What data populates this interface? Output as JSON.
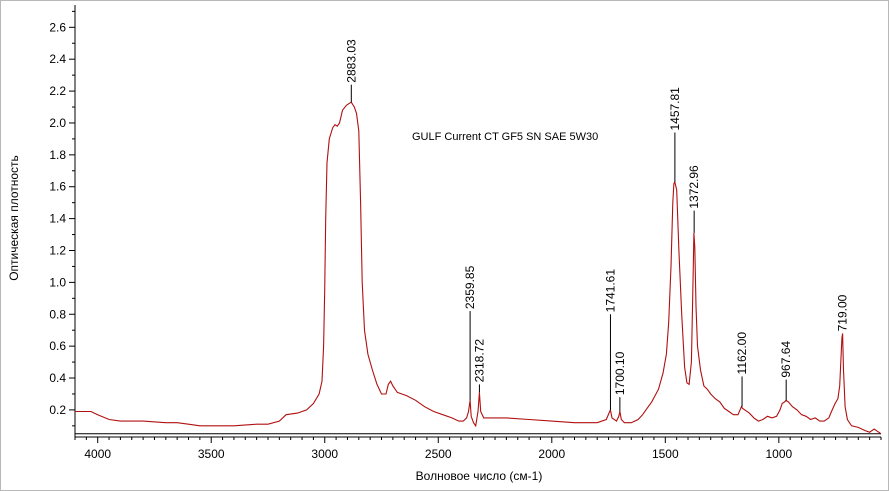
{
  "chart_data": {
    "type": "line",
    "title": "GULF Current CT GF5 SN SAE 5W30",
    "xlabel": "Волновое число (см-1)",
    "ylabel": "Оптическая плотность",
    "xlim": [
      4100,
      550
    ],
    "ylim": [
      0.03,
      2.74
    ],
    "x_reversed": true,
    "grid": false,
    "legend": "none",
    "line_color": "#b01010",
    "x_ticks": [
      4000,
      3500,
      3000,
      2500,
      2000,
      1500,
      1000
    ],
    "x_tick_labels": [
      "4000",
      "3500",
      "3000",
      "2500",
      "2000",
      "1500",
      "1000"
    ],
    "y_ticks": [
      0.2,
      0.4,
      0.6,
      0.8,
      1.0,
      1.2,
      1.4,
      1.6,
      1.8,
      2.0,
      2.2,
      2.4,
      2.6
    ],
    "y_tick_labels": [
      "0.2",
      "0.4",
      "0.6",
      "0.8",
      "1.0",
      "1.2",
      "1.4",
      "1.6",
      "1.8",
      "2.0",
      "2.2",
      "2.4",
      "2.6"
    ],
    "baseline_y": 0.05,
    "series": [
      {
        "points": [
          [
            4100,
            0.19
          ],
          [
            4030,
            0.19
          ],
          [
            4000,
            0.17
          ],
          [
            3950,
            0.14
          ],
          [
            3900,
            0.13
          ],
          [
            3800,
            0.13
          ],
          [
            3700,
            0.12
          ],
          [
            3650,
            0.12
          ],
          [
            3600,
            0.11
          ],
          [
            3550,
            0.1
          ],
          [
            3500,
            0.1
          ],
          [
            3400,
            0.1
          ],
          [
            3300,
            0.11
          ],
          [
            3250,
            0.11
          ],
          [
            3200,
            0.13
          ],
          [
            3170,
            0.17
          ],
          [
            3120,
            0.18
          ],
          [
            3080,
            0.2
          ],
          [
            3050,
            0.24
          ],
          [
            3025,
            0.3
          ],
          [
            3012,
            0.38
          ],
          [
            3005,
            0.6
          ],
          [
            3000,
            0.95
          ],
          [
            2996,
            1.4
          ],
          [
            2990,
            1.75
          ],
          [
            2980,
            1.9
          ],
          [
            2965,
            1.97
          ],
          [
            2955,
            1.99
          ],
          [
            2945,
            1.98
          ],
          [
            2935,
            2.0
          ],
          [
            2922,
            2.08
          ],
          [
            2905,
            2.11
          ],
          [
            2895,
            2.12
          ],
          [
            2883,
            2.13
          ],
          [
            2870,
            2.1
          ],
          [
            2860,
            2.06
          ],
          [
            2850,
            1.95
          ],
          [
            2842,
            1.5
          ],
          [
            2835,
            1.0
          ],
          [
            2825,
            0.7
          ],
          [
            2810,
            0.55
          ],
          [
            2790,
            0.45
          ],
          [
            2770,
            0.36
          ],
          [
            2750,
            0.3
          ],
          [
            2730,
            0.3
          ],
          [
            2720,
            0.36
          ],
          [
            2710,
            0.38
          ],
          [
            2700,
            0.35
          ],
          [
            2680,
            0.31
          ],
          [
            2660,
            0.3
          ],
          [
            2640,
            0.29
          ],
          [
            2600,
            0.26
          ],
          [
            2560,
            0.22
          ],
          [
            2520,
            0.19
          ],
          [
            2480,
            0.17
          ],
          [
            2440,
            0.15
          ],
          [
            2410,
            0.13
          ],
          [
            2390,
            0.13
          ],
          [
            2375,
            0.15
          ],
          [
            2367,
            0.19
          ],
          [
            2360,
            0.26
          ],
          [
            2355,
            0.16
          ],
          [
            2345,
            0.12
          ],
          [
            2335,
            0.1
          ],
          [
            2325,
            0.19
          ],
          [
            2319,
            0.31
          ],
          [
            2313,
            0.19
          ],
          [
            2300,
            0.15
          ],
          [
            2250,
            0.15
          ],
          [
            2200,
            0.15
          ],
          [
            2100,
            0.14
          ],
          [
            2000,
            0.13
          ],
          [
            1900,
            0.12
          ],
          [
            1800,
            0.12
          ],
          [
            1760,
            0.14
          ],
          [
            1748,
            0.18
          ],
          [
            1742,
            0.2
          ],
          [
            1735,
            0.15
          ],
          [
            1715,
            0.13
          ],
          [
            1705,
            0.16
          ],
          [
            1700,
            0.19
          ],
          [
            1694,
            0.14
          ],
          [
            1680,
            0.12
          ],
          [
            1650,
            0.12
          ],
          [
            1620,
            0.14
          ],
          [
            1600,
            0.17
          ],
          [
            1580,
            0.21
          ],
          [
            1560,
            0.25
          ],
          [
            1530,
            0.33
          ],
          [
            1510,
            0.43
          ],
          [
            1495,
            0.55
          ],
          [
            1485,
            0.75
          ],
          [
            1475,
            1.1
          ],
          [
            1467,
            1.5
          ],
          [
            1462,
            1.62
          ],
          [
            1458,
            1.63
          ],
          [
            1450,
            1.58
          ],
          [
            1440,
            1.2
          ],
          [
            1428,
            0.8
          ],
          [
            1415,
            0.47
          ],
          [
            1405,
            0.37
          ],
          [
            1395,
            0.36
          ],
          [
            1385,
            0.5
          ],
          [
            1378,
            1.0
          ],
          [
            1374,
            1.31
          ],
          [
            1370,
            1.22
          ],
          [
            1365,
            0.85
          ],
          [
            1358,
            0.6
          ],
          [
            1345,
            0.45
          ],
          [
            1330,
            0.35
          ],
          [
            1315,
            0.33
          ],
          [
            1300,
            0.3
          ],
          [
            1280,
            0.27
          ],
          [
            1260,
            0.25
          ],
          [
            1240,
            0.21
          ],
          [
            1220,
            0.19
          ],
          [
            1200,
            0.17
          ],
          [
            1180,
            0.17
          ],
          [
            1165,
            0.22
          ],
          [
            1160,
            0.21
          ],
          [
            1150,
            0.2
          ],
          [
            1130,
            0.18
          ],
          [
            1110,
            0.15
          ],
          [
            1090,
            0.13
          ],
          [
            1070,
            0.14
          ],
          [
            1050,
            0.16
          ],
          [
            1030,
            0.15
          ],
          [
            1010,
            0.16
          ],
          [
            995,
            0.2
          ],
          [
            985,
            0.24
          ],
          [
            975,
            0.25
          ],
          [
            968,
            0.26
          ],
          [
            958,
            0.25
          ],
          [
            940,
            0.22
          ],
          [
            920,
            0.2
          ],
          [
            900,
            0.17
          ],
          [
            880,
            0.16
          ],
          [
            860,
            0.14
          ],
          [
            840,
            0.15
          ],
          [
            820,
            0.13
          ],
          [
            800,
            0.13
          ],
          [
            780,
            0.15
          ],
          [
            765,
            0.2
          ],
          [
            752,
            0.24
          ],
          [
            740,
            0.27
          ],
          [
            732,
            0.35
          ],
          [
            727,
            0.5
          ],
          [
            722,
            0.65
          ],
          [
            719,
            0.68
          ],
          [
            715,
            0.45
          ],
          [
            708,
            0.22
          ],
          [
            698,
            0.14
          ],
          [
            680,
            0.1
          ],
          [
            650,
            0.09
          ],
          [
            620,
            0.07
          ],
          [
            600,
            0.06
          ],
          [
            580,
            0.08
          ],
          [
            560,
            0.06
          ],
          [
            550,
            0.05
          ]
        ]
      }
    ],
    "peak_labels": [
      {
        "x": 2883.03,
        "label": "2883.03",
        "tip_y": 2.13,
        "top_y": 2.24
      },
      {
        "x": 2359.85,
        "label": "2359.85",
        "tip_y": 0.26,
        "top_y": 0.82
      },
      {
        "x": 2318.72,
        "label": "2318.72",
        "tip_y": 0.31,
        "top_y": 0.36
      },
      {
        "x": 1741.61,
        "label": "1741.61",
        "tip_y": 0.2,
        "top_y": 0.8
      },
      {
        "x": 1700.1,
        "label": "1700.10",
        "tip_y": 0.19,
        "top_y": 0.28
      },
      {
        "x": 1457.81,
        "label": "1457.81",
        "tip_y": 1.63,
        "top_y": 1.94
      },
      {
        "x": 1372.96,
        "label": "1372.96",
        "tip_y": 1.31,
        "top_y": 1.45
      },
      {
        "x": 1162.0,
        "label": "1162.00",
        "tip_y": 0.22,
        "top_y": 0.41
      },
      {
        "x": 967.64,
        "label": "967.64",
        "tip_y": 0.26,
        "top_y": 0.39
      },
      {
        "x": 719.0,
        "label": "719.00",
        "tip_y": 0.68,
        "top_y": 0.68
      }
    ]
  }
}
